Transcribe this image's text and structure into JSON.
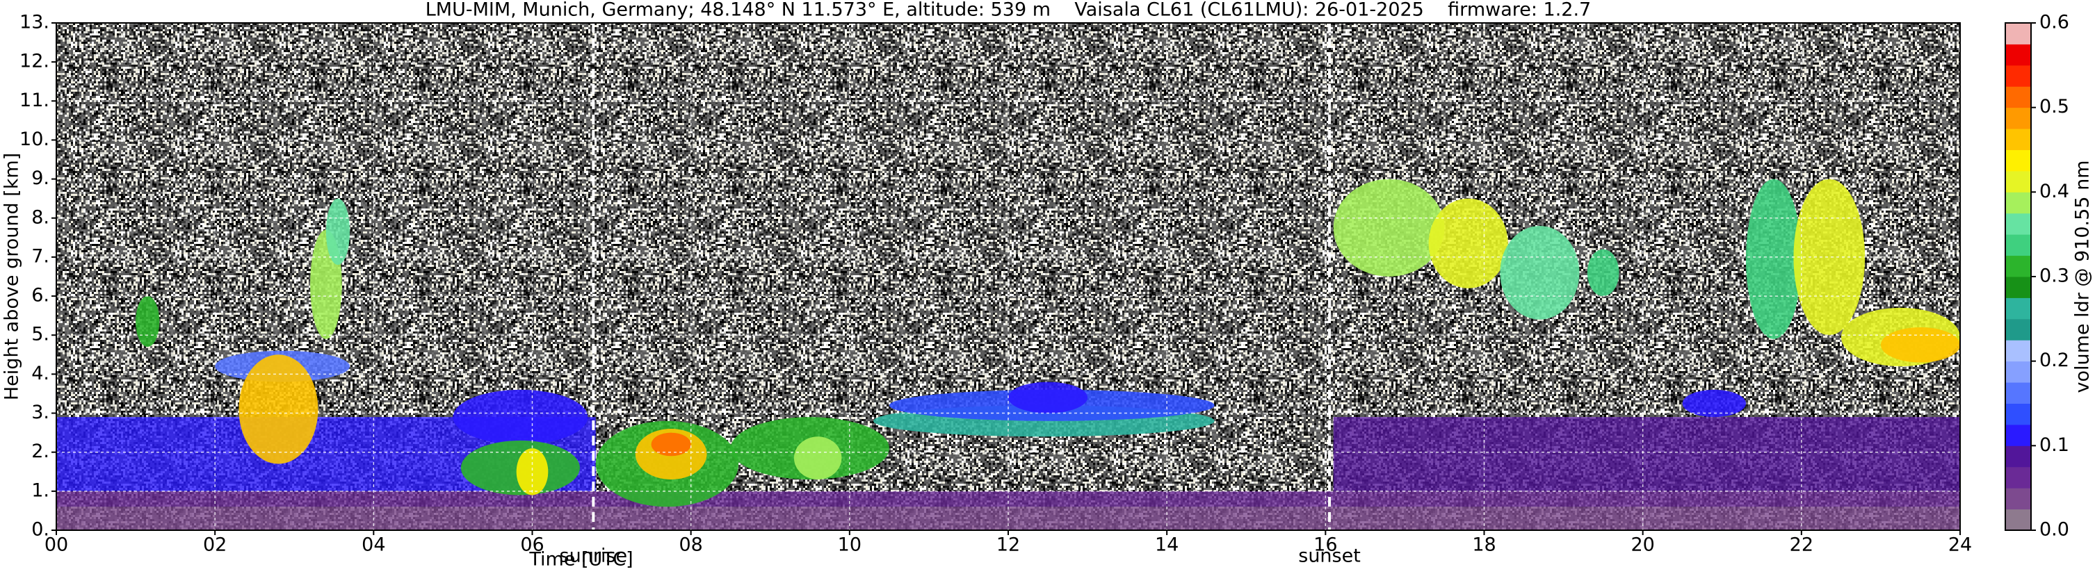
{
  "chart_data": {
    "type": "heatmap",
    "title": "LMU-MIM, Munich, Germany; 48.148° N 11.573° E, altitude: 539 m    Vaisala CL61 (CL61LMU): 26-01-2025    firmware: 1.2.7",
    "x_label": "Time [UTC]",
    "y_label": "Height above ground [km]",
    "colorbar_label": "volume ldr @ 910.55 nm",
    "xlim": [
      0,
      24
    ],
    "xticks": [
      {
        "value": 0,
        "label": "00"
      },
      {
        "value": 2,
        "label": "02"
      },
      {
        "value": 4,
        "label": "04"
      },
      {
        "value": 6,
        "label": "06"
      },
      {
        "value": 8,
        "label": "08"
      },
      10,
      12,
      14,
      16,
      18,
      20,
      22,
      24
    ],
    "ylim": [
      0,
      13
    ],
    "yticks": [
      {
        "value": 0,
        "label": "0."
      },
      {
        "value": 1,
        "label": "1."
      },
      {
        "value": 2,
        "label": "2."
      },
      {
        "value": 3,
        "label": "3."
      },
      {
        "value": 4,
        "label": "4."
      },
      {
        "value": 5,
        "label": "5."
      },
      {
        "value": 6,
        "label": "6."
      },
      {
        "value": 7,
        "label": "7."
      },
      {
        "value": 8,
        "label": "8."
      },
      {
        "value": 9,
        "label": "9."
      },
      {
        "value": 10,
        "label": "10."
      },
      {
        "value": 11,
        "label": "11."
      },
      {
        "value": 12,
        "label": "12."
      },
      {
        "value": 13,
        "label": "13."
      }
    ],
    "clim": [
      0,
      0.6
    ],
    "cticks": [
      {
        "value": 0,
        "label": "0.0"
      },
      0.1,
      0.2,
      0.3,
      0.4,
      0.5,
      0.6
    ],
    "colormap": [
      "#8e7a8e",
      "#7d4a8f",
      "#6a2a96",
      "#52169a",
      "#2a1aff",
      "#2f4fff",
      "#5676ff",
      "#86a0ff",
      "#a9c0ff",
      "#1f9a8a",
      "#2eb49e",
      "#179117",
      "#2cb42c",
      "#3fd07f",
      "#66e3a2",
      "#a6f05c",
      "#e6f425",
      "#fff000",
      "#ffc400",
      "#ff9a00",
      "#ff6a00",
      "#ff2a00",
      "#ee0000",
      "#f0b4b4"
    ],
    "colormap_top": "#f5e4e4",
    "grid": true,
    "markers": [
      {
        "label": "sunrise",
        "x": 6.77
      },
      {
        "label": "sunset",
        "x": 16.05
      }
    ],
    "regions": [
      {
        "x": [
          0,
          24
        ],
        "y": [
          0,
          0.6
        ],
        "value": 0.04
      },
      {
        "x": [
          0,
          24
        ],
        "y": [
          0.6,
          1.0
        ],
        "value": 0.07
      },
      {
        "x": [
          0,
          6.8
        ],
        "y": [
          1.0,
          2.9
        ],
        "value": 0.12
      },
      {
        "x": [
          16.1,
          24
        ],
        "y": [
          1.0,
          2.9
        ],
        "value": 0.09
      },
      {
        "x": [
          1.0,
          1.3
        ],
        "y": [
          4.7,
          6.0
        ],
        "value": 0.3
      },
      {
        "x": [
          2.0,
          3.7
        ],
        "y": [
          3.8,
          4.6
        ],
        "value": 0.15
      },
      {
        "x": [
          2.3,
          3.3
        ],
        "y": [
          1.7,
          4.5
        ],
        "value": 0.45
      },
      {
        "x": [
          3.2,
          3.6
        ],
        "y": [
          4.9,
          7.7
        ],
        "value": 0.38
      },
      {
        "x": [
          3.4,
          3.7
        ],
        "y": [
          6.8,
          8.5
        ],
        "value": 0.35
      },
      {
        "x": [
          5.0,
          6.7
        ],
        "y": [
          2.2,
          3.6
        ],
        "value": 0.12
      },
      {
        "x": [
          5.1,
          6.6
        ],
        "y": [
          0.9,
          2.3
        ],
        "value": 0.3
      },
      {
        "x": [
          5.8,
          6.2
        ],
        "y": [
          0.9,
          2.1
        ],
        "value": 0.44
      },
      {
        "x": [
          6.8,
          8.6
        ],
        "y": [
          0.6,
          2.8
        ],
        "value": 0.3
      },
      {
        "x": [
          7.3,
          8.2
        ],
        "y": [
          1.3,
          2.6
        ],
        "value": 0.46
      },
      {
        "x": [
          7.5,
          8.0
        ],
        "y": [
          1.9,
          2.5
        ],
        "value": 0.52
      },
      {
        "x": [
          8.5,
          10.5
        ],
        "y": [
          1.3,
          2.9
        ],
        "value": 0.3
      },
      {
        "x": [
          9.3,
          9.9
        ],
        "y": [
          1.3,
          2.4
        ],
        "value": 0.38
      },
      {
        "x": [
          10.3,
          14.6
        ],
        "y": [
          2.4,
          3.2
        ],
        "value": 0.27
      },
      {
        "x": [
          10.5,
          14.6
        ],
        "y": [
          2.8,
          3.6
        ],
        "value": 0.13
      },
      {
        "x": [
          12.0,
          13.0
        ],
        "y": [
          3.0,
          3.8
        ],
        "value": 0.12
      },
      {
        "x": [
          16.1,
          17.5
        ],
        "y": [
          6.5,
          9.0
        ],
        "value": 0.38
      },
      {
        "x": [
          17.3,
          18.3
        ],
        "y": [
          6.2,
          8.5
        ],
        "value": 0.4
      },
      {
        "x": [
          18.2,
          19.2
        ],
        "y": [
          5.4,
          7.8
        ],
        "value": 0.36
      },
      {
        "x": [
          19.3,
          19.7
        ],
        "y": [
          6.0,
          7.2
        ],
        "value": 0.33
      },
      {
        "x": [
          20.5,
          21.3
        ],
        "y": [
          2.9,
          3.6
        ],
        "value": 0.12
      },
      {
        "x": [
          21.3,
          22.0
        ],
        "y": [
          4.9,
          9.0
        ],
        "value": 0.33
      },
      {
        "x": [
          21.9,
          22.8
        ],
        "y": [
          5.0,
          9.0
        ],
        "value": 0.42
      },
      {
        "x": [
          22.5,
          24
        ],
        "y": [
          4.2,
          5.7
        ],
        "value": 0.42
      },
      {
        "x": [
          23.0,
          24
        ],
        "y": [
          4.3,
          5.2
        ],
        "value": 0.45
      }
    ]
  }
}
